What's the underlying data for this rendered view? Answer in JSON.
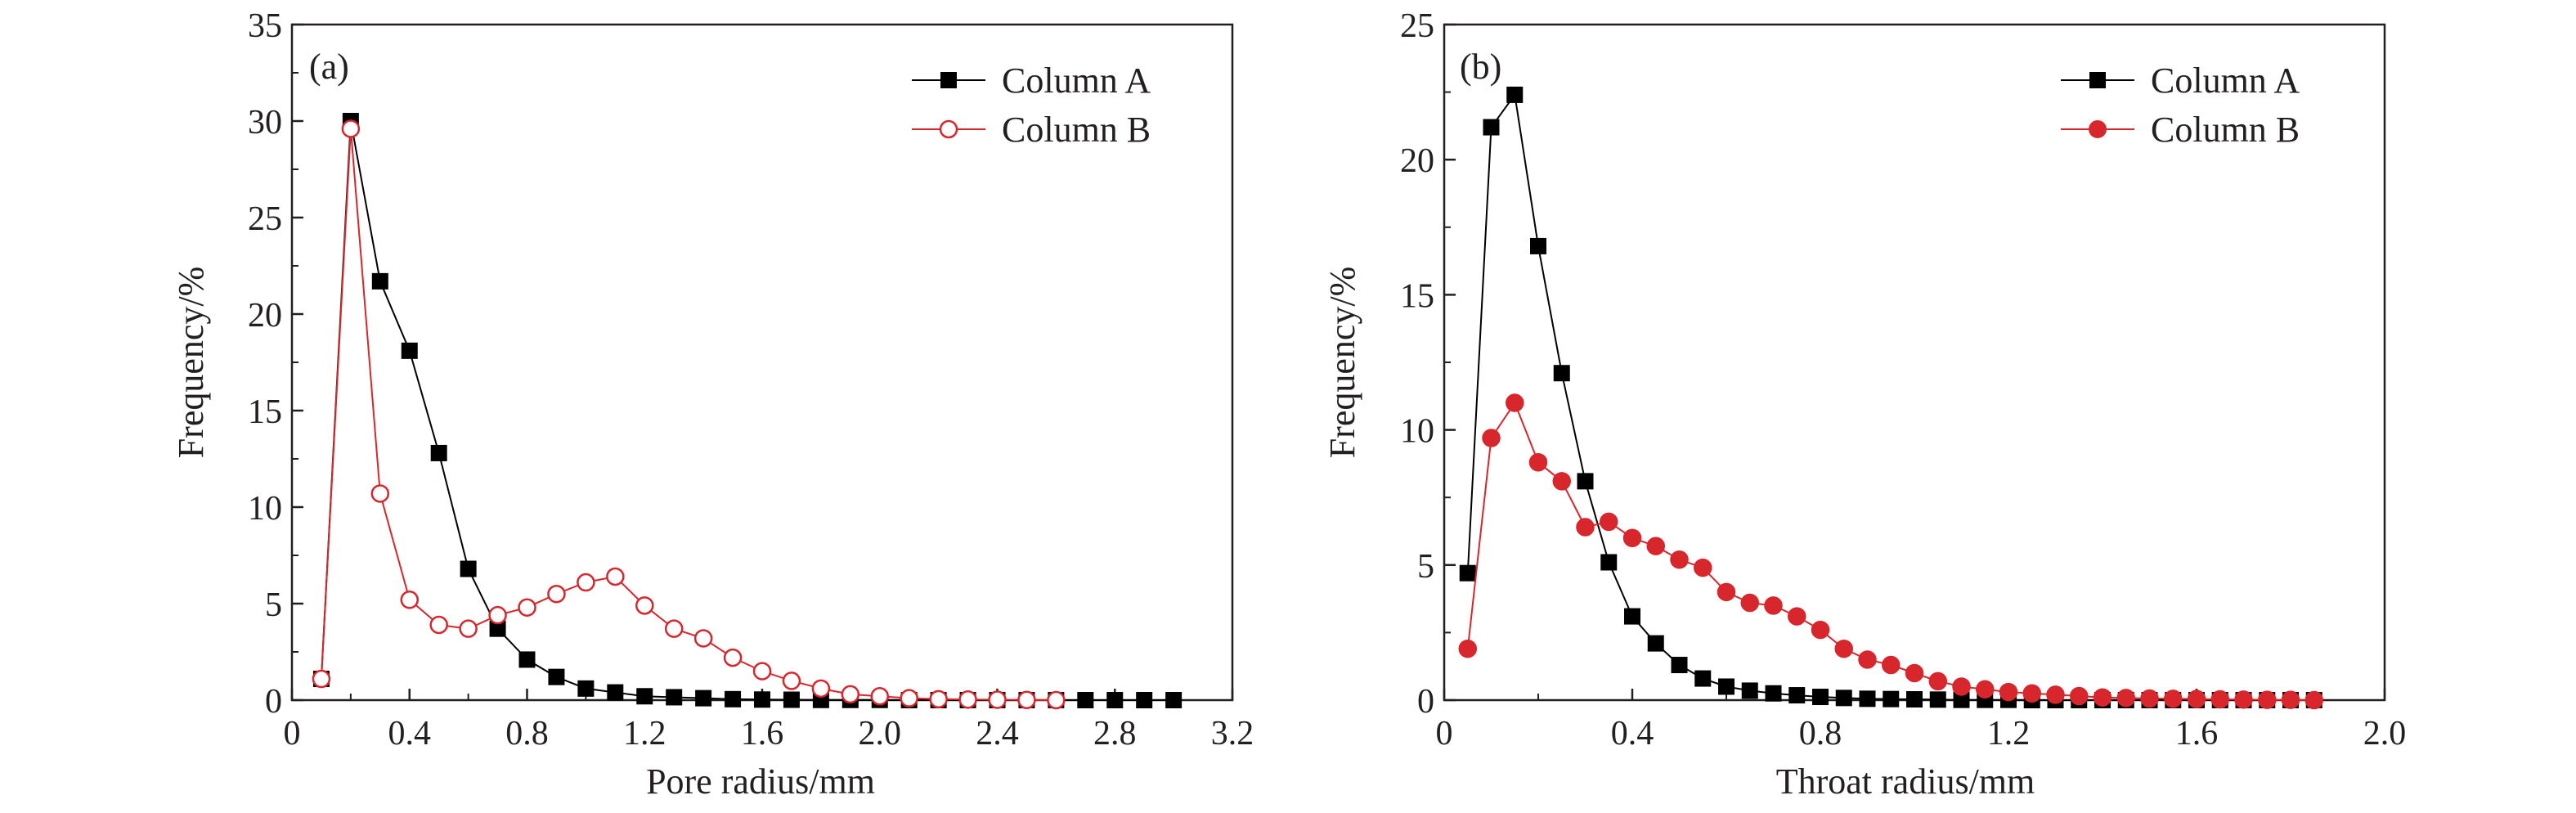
{
  "colors": {
    "axis": "#231f20",
    "series_a": "#000000",
    "series_b": "#d7262c"
  },
  "chart_data": [
    {
      "type": "line",
      "panel_label": "(a)",
      "xlabel": "Pore radius/mm",
      "ylabel": "Frequency/%",
      "xlim": [
        0,
        3.2
      ],
      "ylim": [
        0,
        35
      ],
      "xticks": [
        0,
        0.4,
        0.8,
        1.2,
        1.6,
        2.0,
        2.4,
        2.8,
        3.2
      ],
      "xtick_labels": [
        "0",
        "0.4",
        "0.8",
        "1.2",
        "1.6",
        "2.0",
        "2.4",
        "2.8",
        "3.2"
      ],
      "yticks": [
        0,
        5,
        10,
        15,
        20,
        25,
        30,
        35
      ],
      "ytick_labels": [
        "0",
        "5",
        "10",
        "15",
        "20",
        "25",
        "30",
        "35"
      ],
      "grid": false,
      "legend_position": "top-right",
      "series": [
        {
          "name": "Column A",
          "marker": "filled-square",
          "color": "#000000",
          "x": [
            0.1,
            0.2,
            0.3,
            0.4,
            0.5,
            0.6,
            0.7,
            0.8,
            0.9,
            1.0,
            1.1,
            1.2,
            1.3,
            1.4,
            1.5,
            1.6,
            1.7,
            1.8,
            1.9,
            2.0,
            2.1,
            2.2,
            2.3,
            2.4,
            2.5,
            2.6,
            2.7,
            2.8,
            2.9,
            3.0
          ],
          "y": [
            1.1,
            30.0,
            21.7,
            18.1,
            12.8,
            6.8,
            3.7,
            2.1,
            1.2,
            0.6,
            0.4,
            0.2,
            0.15,
            0.1,
            0.05,
            0.03,
            0.02,
            0.01,
            0.01,
            0.01,
            0,
            0,
            0,
            0,
            0,
            0,
            0,
            0,
            0,
            0
          ]
        },
        {
          "name": "Column B",
          "marker": "open-circle",
          "color": "#d7262c",
          "x": [
            0.1,
            0.2,
            0.3,
            0.4,
            0.5,
            0.6,
            0.7,
            0.8,
            0.9,
            1.0,
            1.1,
            1.2,
            1.3,
            1.4,
            1.5,
            1.6,
            1.7,
            1.8,
            1.9,
            2.0,
            2.1,
            2.2,
            2.3,
            2.4,
            2.5,
            2.6
          ],
          "y": [
            1.1,
            29.6,
            10.7,
            5.2,
            3.9,
            3.7,
            4.4,
            4.8,
            5.5,
            6.1,
            6.4,
            4.9,
            3.7,
            3.2,
            2.2,
            1.5,
            1.0,
            0.6,
            0.3,
            0.2,
            0.1,
            0.05,
            0.03,
            0.02,
            0.01,
            0
          ]
        }
      ]
    },
    {
      "type": "line",
      "panel_label": "(b)",
      "xlabel": "Throat radius/mm",
      "ylabel": "Frequency/%",
      "xlim": [
        0,
        2.0
      ],
      "ylim": [
        0,
        25
      ],
      "xticks": [
        0,
        0.4,
        0.8,
        1.2,
        1.6,
        2.0
      ],
      "xtick_labels": [
        "0",
        "0.4",
        "0.8",
        "1.2",
        "1.6",
        "2.0"
      ],
      "yticks": [
        0,
        5,
        10,
        15,
        20,
        25
      ],
      "ytick_labels": [
        "0",
        "5",
        "10",
        "15",
        "20",
        "25"
      ],
      "grid": false,
      "legend_position": "top-right",
      "series": [
        {
          "name": "Column A",
          "marker": "filled-square",
          "color": "#000000",
          "x": [
            0.05,
            0.1,
            0.15,
            0.2,
            0.25,
            0.3,
            0.35,
            0.4,
            0.45,
            0.5,
            0.55,
            0.6,
            0.65,
            0.7,
            0.75,
            0.8,
            0.85,
            0.9,
            0.95,
            1.0,
            1.05,
            1.1,
            1.15,
            1.2,
            1.25,
            1.3,
            1.35,
            1.4,
            1.45,
            1.5,
            1.55,
            1.6,
            1.65,
            1.7,
            1.75,
            1.8,
            1.85
          ],
          "y": [
            4.7,
            21.2,
            22.4,
            16.8,
            12.1,
            8.1,
            5.1,
            3.1,
            2.1,
            1.3,
            0.8,
            0.5,
            0.35,
            0.25,
            0.18,
            0.12,
            0.08,
            0.05,
            0.04,
            0.03,
            0.02,
            0.01,
            0.01,
            0.01,
            0,
            0,
            0,
            0,
            0,
            0,
            0,
            0,
            0,
            0,
            0,
            0,
            0
          ]
        },
        {
          "name": "Column B",
          "marker": "filled-circle",
          "color": "#d7262c",
          "x": [
            0.05,
            0.1,
            0.15,
            0.2,
            0.25,
            0.3,
            0.35,
            0.4,
            0.45,
            0.5,
            0.55,
            0.6,
            0.65,
            0.7,
            0.75,
            0.8,
            0.85,
            0.9,
            0.95,
            1.0,
            1.05,
            1.1,
            1.15,
            1.2,
            1.25,
            1.3,
            1.35,
            1.4,
            1.45,
            1.5,
            1.55,
            1.6,
            1.65,
            1.7,
            1.75,
            1.8,
            1.85
          ],
          "y": [
            1.9,
            9.7,
            11.0,
            8.8,
            8.1,
            6.4,
            6.6,
            6.0,
            5.7,
            5.2,
            4.9,
            4.0,
            3.6,
            3.5,
            3.1,
            2.6,
            1.9,
            1.5,
            1.3,
            1.0,
            0.7,
            0.5,
            0.4,
            0.3,
            0.25,
            0.2,
            0.15,
            0.1,
            0.08,
            0.06,
            0.05,
            0.04,
            0.03,
            0.02,
            0.01,
            0.01,
            0
          ]
        }
      ]
    }
  ]
}
